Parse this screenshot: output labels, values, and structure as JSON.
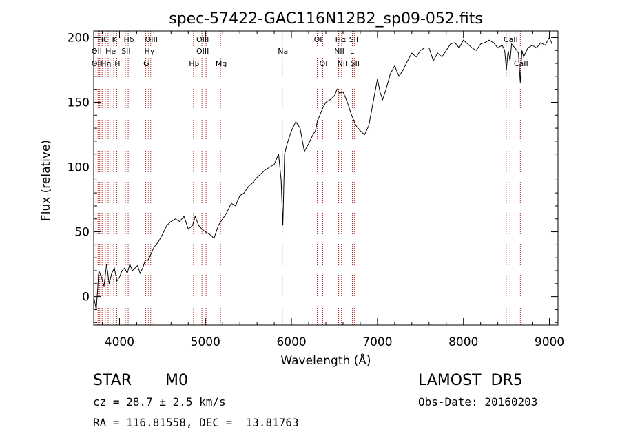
{
  "chart_data": {
    "type": "line",
    "title": "spec-57422-GAC116N12B2_sp09-052.fits",
    "xlabel": "Wavelength (Å)",
    "ylabel": "Flux (relative)",
    "xlim": [
      3700,
      9100
    ],
    "ylim": [
      -22,
      205
    ],
    "x_ticks": [
      4000,
      5000,
      6000,
      7000,
      8000,
      9000
    ],
    "y_ticks": [
      0,
      50,
      100,
      150,
      200
    ],
    "grid": false,
    "series": [
      {
        "x": [
          3700,
          3730,
          3760,
          3790,
          3820,
          3850,
          3880,
          3910,
          3940,
          3970,
          4000,
          4030,
          4060,
          4090,
          4120,
          4150,
          4180,
          4210,
          4240,
          4270,
          4300,
          4330,
          4360,
          4400,
          4450,
          4500,
          4550,
          4600,
          4650,
          4700,
          4750,
          4800,
          4850,
          4880,
          4920,
          4960,
          5000,
          5050,
          5100,
          5150,
          5200,
          5250,
          5300,
          5350,
          5400,
          5450,
          5500,
          5550,
          5600,
          5650,
          5700,
          5750,
          5800,
          5850,
          5880,
          5900,
          5920,
          5950,
          6000,
          6050,
          6100,
          6150,
          6200,
          6250,
          6280,
          6300,
          6330,
          6360,
          6400,
          6450,
          6500,
          6530,
          6560,
          6600,
          6650,
          6700,
          6750,
          6800,
          6850,
          6900,
          6950,
          7000,
          7030,
          7060,
          7100,
          7150,
          7200,
          7250,
          7300,
          7350,
          7400,
          7450,
          7500,
          7550,
          7600,
          7630,
          7650,
          7700,
          7750,
          7800,
          7850,
          7900,
          7950,
          8000,
          8050,
          8100,
          8150,
          8200,
          8250,
          8300,
          8350,
          8400,
          8450,
          8480,
          8500,
          8520,
          8542,
          8560,
          8600,
          8640,
          8662,
          8680,
          8700,
          8750,
          8800,
          8850,
          8900,
          8950,
          9000,
          9030
        ],
        "y": [
          0,
          -10,
          20,
          15,
          8,
          25,
          10,
          18,
          22,
          12,
          15,
          20,
          22,
          18,
          25,
          20,
          22,
          24,
          18,
          22,
          28,
          28,
          32,
          38,
          42,
          48,
          55,
          58,
          60,
          58,
          62,
          52,
          55,
          62,
          55,
          52,
          50,
          48,
          45,
          55,
          60,
          65,
          72,
          70,
          78,
          80,
          85,
          88,
          92,
          95,
          98,
          100,
          102,
          110,
          90,
          55,
          110,
          118,
          128,
          135,
          130,
          112,
          118,
          125,
          128,
          135,
          140,
          145,
          150,
          152,
          155,
          160,
          157,
          158,
          150,
          140,
          132,
          128,
          125,
          132,
          150,
          168,
          158,
          152,
          160,
          172,
          178,
          170,
          175,
          182,
          188,
          185,
          190,
          192,
          192,
          186,
          182,
          188,
          185,
          190,
          195,
          196,
          192,
          198,
          195,
          192,
          190,
          195,
          196,
          198,
          196,
          192,
          194,
          190,
          175,
          190,
          182,
          195,
          192,
          188,
          165,
          190,
          185,
          192,
          194,
          192,
          196,
          194,
          200,
          195
        ]
      }
    ],
    "line_markers": [
      {
        "label": "Hθ",
        "x": 3798,
        "row": 0
      },
      {
        "label": "OII",
        "x": 3727,
        "row": 1
      },
      {
        "label": "OII",
        "x": 3727,
        "row": 2
      },
      {
        "label": "Hη",
        "x": 3835,
        "row": 2
      },
      {
        "label": "He",
        "x": 3889,
        "row": 1
      },
      {
        "label": "K",
        "x": 3933,
        "row": 0
      },
      {
        "label": "H",
        "x": 3968,
        "row": 2
      },
      {
        "label": "SII",
        "x": 4068,
        "row": 1
      },
      {
        "label": "Hδ",
        "x": 4101,
        "row": 0
      },
      {
        "label": "OIII",
        "x": 4363,
        "row": 0
      },
      {
        "label": "Hγ",
        "x": 4340,
        "row": 1
      },
      {
        "label": "G",
        "x": 4304,
        "row": 2
      },
      {
        "label": "OIII",
        "x": 4959,
        "row": 0
      },
      {
        "label": "OIII",
        "x": 4959,
        "row": 1
      },
      {
        "label": "Hβ",
        "x": 4861,
        "row": 2
      },
      {
        "label": "Mg",
        "x": 5175,
        "row": 2
      },
      {
        "label": "Na",
        "x": 5893,
        "row": 1
      },
      {
        "label": "OI",
        "x": 6300,
        "row": 0
      },
      {
        "label": "OI",
        "x": 6364,
        "row": 2
      },
      {
        "label": "Hα",
        "x": 6563,
        "row": 0
      },
      {
        "label": "NII",
        "x": 6548,
        "row": 1
      },
      {
        "label": "NII",
        "x": 6583,
        "row": 2
      },
      {
        "label": "SII",
        "x": 6716,
        "row": 0
      },
      {
        "label": "Li",
        "x": 6708,
        "row": 1
      },
      {
        "label": "SII",
        "x": 6731,
        "row": 2
      },
      {
        "label": "CaII",
        "x": 8542,
        "row": 0
      },
      {
        "label": "CaII",
        "x": 8662,
        "row": 2
      }
    ],
    "marker_lines": [
      3727,
      3750,
      3770,
      3798,
      3835,
      3868,
      3889,
      3933,
      3968,
      4068,
      4101,
      4304,
      4340,
      4363,
      4861,
      4959,
      5007,
      5175,
      5893,
      6300,
      6364,
      6548,
      6563,
      6583,
      6708,
      6716,
      6731,
      8498,
      8542,
      8662
    ],
    "marker_color": "#b22222"
  },
  "info": {
    "object_class": "STAR",
    "subclass": "M0",
    "survey": "LAMOST  DR5",
    "redshift": "cz = 28.7 ± 2.5 km/s",
    "obs_date": "Obs-Date: 20160203",
    "coords": "RA = 116.81558, DEC =  13.81763"
  }
}
